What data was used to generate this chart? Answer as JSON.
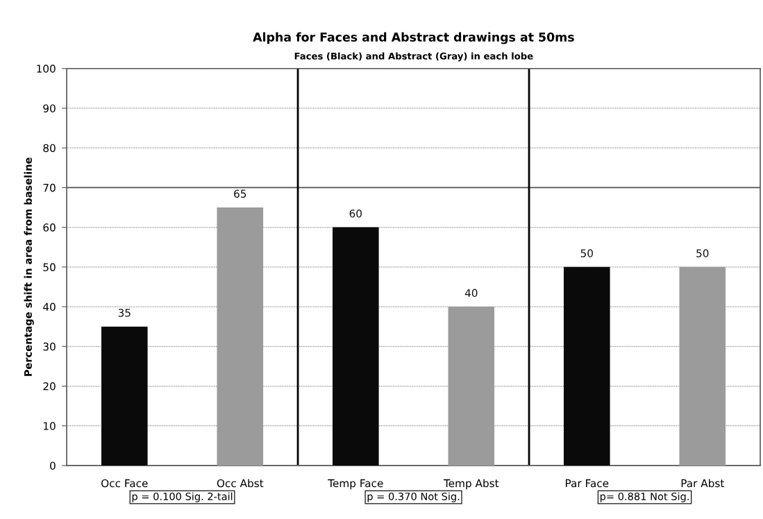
{
  "chart_data": {
    "type": "bar",
    "title": "Alpha for Faces and Abstract drawings at 50ms",
    "subtitle": "Faces (Black) and Abstract (Gray) in each lobe",
    "ylabel": "Percentage shift in area from baseline",
    "categories": [
      "Occ Face",
      "Occ Abst",
      "Temp Face",
      "Temp Abst",
      "Par Face",
      "Par Abst"
    ],
    "values": [
      35,
      65,
      60,
      40,
      50,
      50
    ],
    "colors": [
      "#0a0a0a",
      "#9b9b9b",
      "#0a0a0a",
      "#9b9b9b",
      "#0a0a0a",
      "#9b9b9b"
    ],
    "ylim": [
      0,
      100
    ],
    "yticks": [
      0,
      10,
      20,
      30,
      40,
      50,
      60,
      70,
      80,
      90,
      100
    ],
    "grid": "y",
    "data_labels": true,
    "ref_lines": [
      {
        "axis": "y",
        "value": 70,
        "color": "#555555"
      }
    ],
    "annotations": [
      "p = 0.100 Sig. 2-tail",
      "p = 0.370 Not Sig.",
      "p= 0.881 Not Sig."
    ]
  }
}
